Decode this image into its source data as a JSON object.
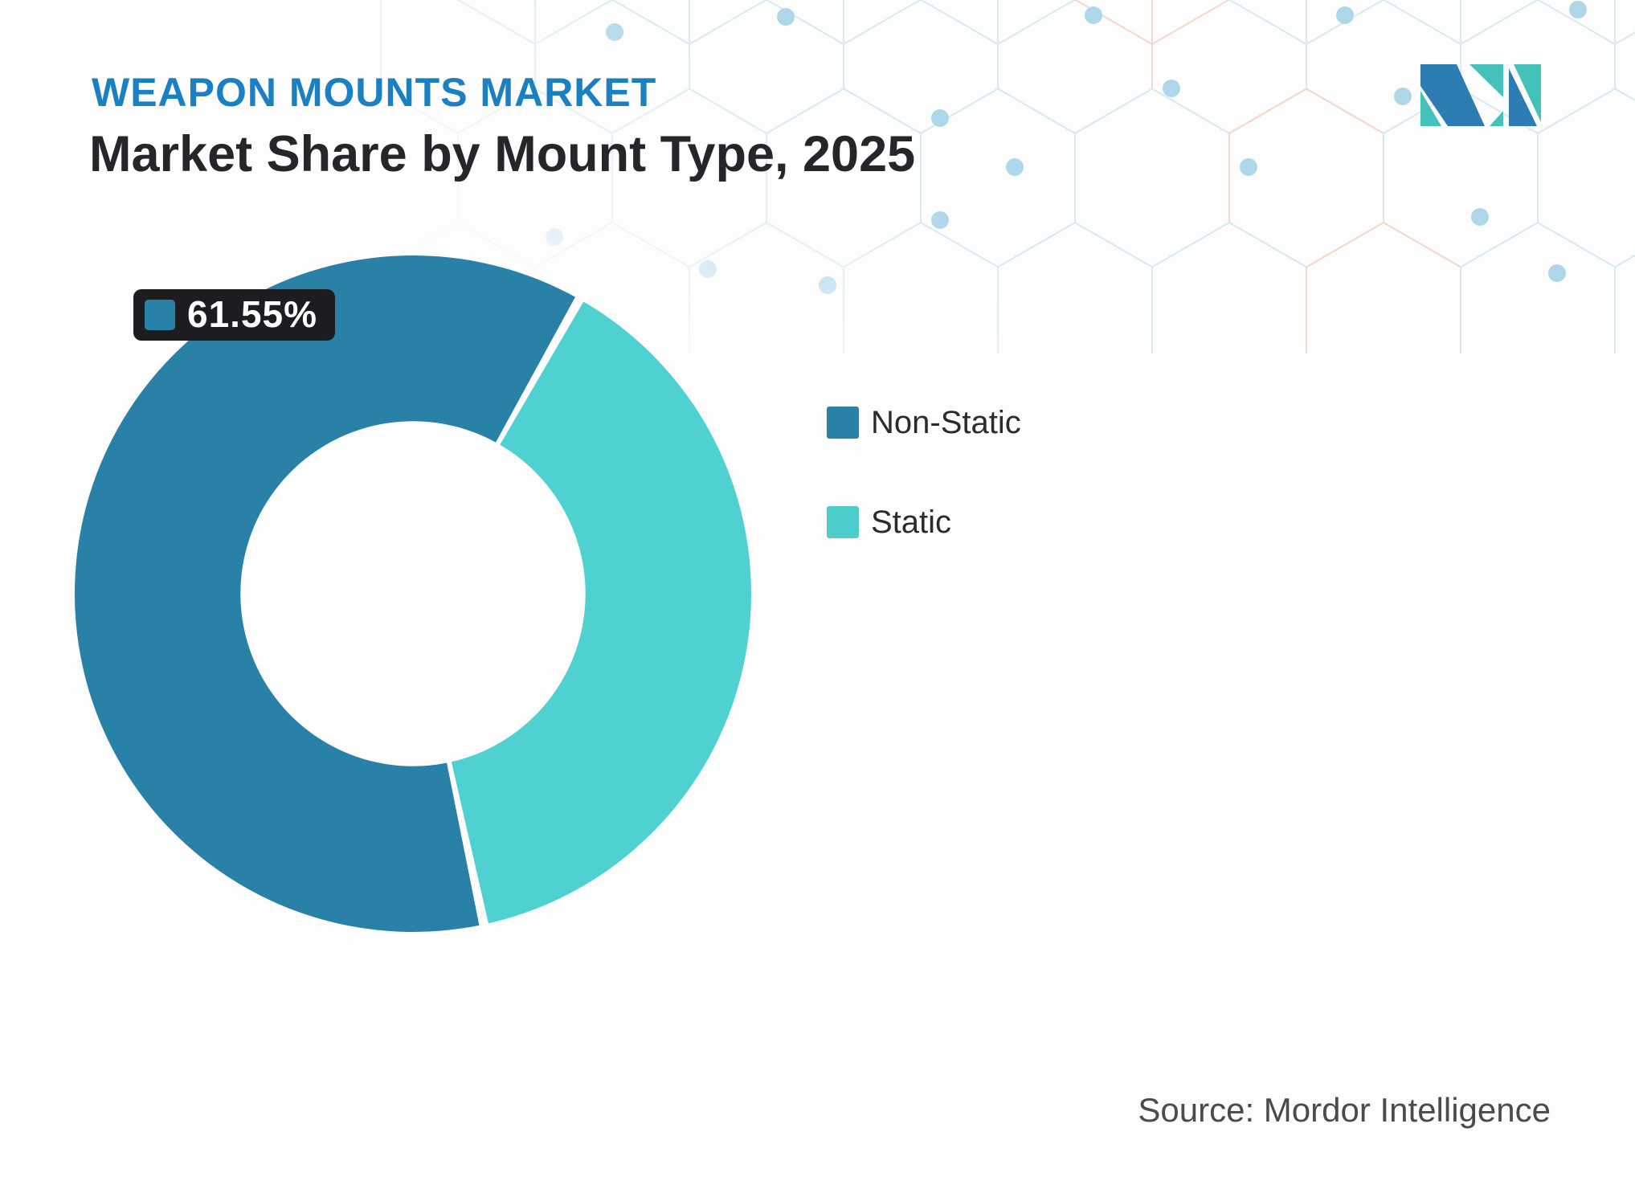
{
  "header": {
    "market_label": "WEAPON MOUNTS MARKET",
    "title": "Market Share by Mount Type, 2025"
  },
  "callout": {
    "value_label": "61.55%",
    "background": "#1d1d21",
    "text_color": "#ffffff"
  },
  "legend": {
    "position": "right",
    "items": [
      {
        "label": "Non-Static",
        "color": "#2a81a8"
      },
      {
        "label": "Static",
        "color": "#4ccccb"
      }
    ]
  },
  "source": {
    "text": "Source: Mordor Intelligence"
  },
  "logo": {
    "name": "mordor-intelligence-logo",
    "blue": "#2d7cb4",
    "teal": "#45c1bb"
  },
  "chart_data": {
    "type": "pie",
    "title": "Market Share by Mount Type, 2025",
    "unit": "percent",
    "series": [
      {
        "name": "Non-Static",
        "value": 61.55,
        "color": "#2a81a8"
      },
      {
        "name": "Static",
        "value": 38.45,
        "color": "#4fd0d1"
      }
    ],
    "donut_hole_ratio": 0.51,
    "rotation_deg": 167.9,
    "slice_gap_deg": 1.6,
    "legend_position": "right",
    "annotation": {
      "series": "Non-Static",
      "label": "61.55%"
    }
  },
  "background": {
    "pattern": "hexagon-grid",
    "line_blue": "#d9eaf3",
    "line_salmon": "#f5d8cd",
    "dot_color": "#aed7ea"
  }
}
